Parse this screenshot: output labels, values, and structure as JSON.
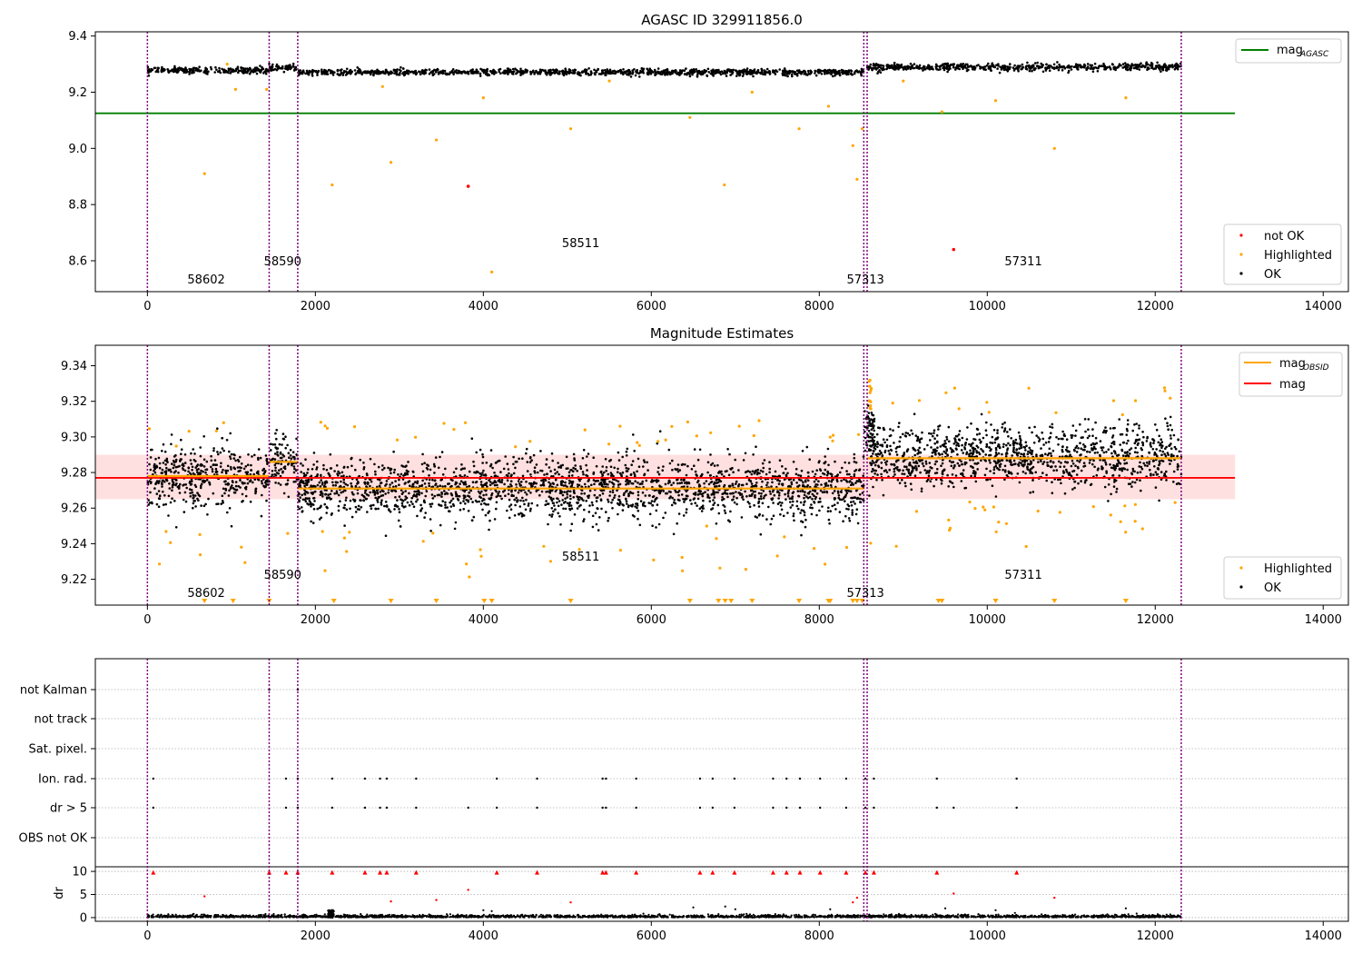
{
  "colors": {
    "ok": "#000000",
    "highlighted": "#ffa500",
    "not_ok": "#ff0000",
    "agasc_line": "#008000",
    "mag_line": "#ff0000",
    "obsid_line": "#ffa500",
    "band": "#ffd6d6",
    "obs_boundary": "#800080"
  },
  "obs_boundaries": [
    0,
    1450,
    1790,
    8530,
    8570,
    12310
  ],
  "obs_labels": [
    {
      "text": "58602",
      "x": 700,
      "row": 3
    },
    {
      "text": "58590",
      "x": 1610,
      "row": 2
    },
    {
      "text": "58511",
      "x": 5160,
      "row": 1
    },
    {
      "text": "57313",
      "x": 8550,
      "row": 3
    },
    {
      "text": "57311",
      "x": 10430,
      "row": 2
    }
  ],
  "chart_data": [
    {
      "type": "scatter",
      "title": "AGASC ID 329911856.0",
      "xlim": [
        -620,
        14300
      ],
      "ylim": [
        8.49,
        9.415
      ],
      "xticks": [
        0,
        2000,
        4000,
        6000,
        8000,
        10000,
        12000,
        14000
      ],
      "yticks": [
        8.6,
        8.8,
        9.0,
        9.2,
        9.4
      ],
      "yticklabels": [
        "8.6",
        "8.8",
        "9.0",
        "9.2",
        "9.4"
      ],
      "lines": [
        {
          "name": "mag",
          "subscript": "AGASC",
          "y": 9.125,
          "x": [
            -620,
            12950
          ]
        }
      ],
      "legend_points": [
        "not OK",
        "Highlighted",
        "OK"
      ],
      "ok_segments": [
        {
          "x": [
            0,
            1450
          ],
          "mean": 9.278,
          "spread": 0.01
        },
        {
          "x": [
            1450,
            1790
          ],
          "mean": 9.286,
          "spread": 0.01
        },
        {
          "x": [
            1790,
            8530
          ],
          "mean": 9.271,
          "spread": 0.01
        },
        {
          "x": [
            8570,
            12310
          ],
          "mean": 9.289,
          "spread": 0.012
        }
      ],
      "highlighted": [
        [
          680,
          8.91
        ],
        [
          1050,
          9.21
        ],
        [
          1420,
          9.21
        ],
        [
          2200,
          8.87
        ],
        [
          2900,
          8.95
        ],
        [
          3440,
          9.03
        ],
        [
          4000,
          9.18
        ],
        [
          4100,
          8.56
        ],
        [
          5040,
          9.07
        ],
        [
          6460,
          9.11
        ],
        [
          6870,
          8.87
        ],
        [
          7760,
          9.07
        ],
        [
          8110,
          9.15
        ],
        [
          8400,
          9.01
        ],
        [
          8450,
          8.89
        ],
        [
          8510,
          9.07
        ],
        [
          9460,
          9.13
        ],
        [
          10100,
          9.17
        ],
        [
          10800,
          9.0
        ],
        [
          11650,
          9.18
        ],
        [
          950,
          9.3
        ],
        [
          2800,
          9.22
        ],
        [
          5500,
          9.24
        ],
        [
          7200,
          9.2
        ],
        [
          9000,
          9.24
        ]
      ],
      "not_ok": [
        [
          3820,
          8.865
        ],
        [
          9600,
          8.64
        ]
      ]
    },
    {
      "type": "scatter",
      "title": "Magnitude Estimates",
      "xlim": [
        -620,
        14300
      ],
      "ylim": [
        9.2055,
        9.3515
      ],
      "xticks": [
        0,
        2000,
        4000,
        6000,
        8000,
        10000,
        12000,
        14000
      ],
      "yticks": [
        9.22,
        9.24,
        9.26,
        9.28,
        9.3,
        9.32,
        9.34
      ],
      "yticklabels": [
        "9.22",
        "9.24",
        "9.26",
        "9.28",
        "9.30",
        "9.32",
        "9.34"
      ],
      "band": {
        "y": [
          9.265,
          9.29
        ],
        "x": [
          -620,
          12950
        ]
      },
      "lines": [
        {
          "name": "mag",
          "subscript": "OBSID"
        },
        {
          "name": "mag",
          "y": 9.277,
          "x": [
            -620,
            12950
          ]
        }
      ],
      "obsid_segments": [
        {
          "x": [
            0,
            1450
          ],
          "y": 9.278
        },
        {
          "x": [
            1450,
            1790
          ],
          "y": 9.286
        },
        {
          "x": [
            1790,
            8530
          ],
          "y": 9.271
        },
        {
          "x": [
            8570,
            12310
          ],
          "y": 9.288
        }
      ],
      "legend_points": [
        "Highlighted",
        "OK"
      ],
      "highlighted_clipped_x": [
        680,
        1020,
        1450,
        2220,
        2900,
        3440,
        4010,
        4100,
        5040,
        6460,
        6800,
        6880,
        6950,
        7200,
        7760,
        8110,
        8130,
        8400,
        8450,
        8510,
        9420,
        9460,
        10100,
        10800,
        11650
      ]
    },
    {
      "type": "scatter",
      "title": "",
      "xlim": [
        -620,
        14300
      ],
      "xticks": [
        0,
        2000,
        4000,
        6000,
        8000,
        10000,
        12000,
        14000
      ],
      "flag_rows": [
        "not Kalman",
        "not track",
        "Sat. pixel.",
        "Ion. rad.",
        "dr > 5",
        "OBS not OK"
      ],
      "flag_events": {
        "not Kalman": [
          1450,
          1790
        ],
        "not track": [],
        "Sat. pixel.": [],
        "Ion. rad.": [
          70,
          1650,
          1790,
          2200,
          2590,
          2770,
          2850,
          3200,
          4160,
          4640,
          5420,
          5460,
          5820,
          6580,
          6730,
          6990,
          7450,
          7610,
          7770,
          8010,
          8320,
          8550,
          8650,
          9400,
          10350
        ],
        "dr > 5": [
          70,
          1650,
          1790,
          2200,
          2590,
          2770,
          2850,
          3200,
          3820,
          4160,
          4640,
          5420,
          5460,
          5820,
          6580,
          6730,
          6990,
          7450,
          7610,
          7770,
          8010,
          8320,
          8550,
          8650,
          9400,
          9600,
          10350
        ],
        "OBS not OK": []
      },
      "dr_ylim": [
        -0.8,
        11
      ],
      "dr_yticks": [
        0,
        5,
        10
      ],
      "dr_yticklabels": [
        "0",
        "5",
        "10"
      ],
      "ylabel": "dr",
      "dr_high": [
        [
          70,
          9.8
        ],
        [
          1450,
          9.8
        ],
        [
          1650,
          9.8
        ],
        [
          1790,
          9.8
        ],
        [
          2200,
          9.8
        ],
        [
          2590,
          9.8
        ],
        [
          2770,
          9.8
        ],
        [
          2850,
          9.8
        ],
        [
          3200,
          9.8
        ],
        [
          4160,
          9.8
        ],
        [
          4640,
          9.8
        ],
        [
          5420,
          9.8
        ],
        [
          5460,
          9.8
        ],
        [
          5820,
          9.8
        ],
        [
          6580,
          9.8
        ],
        [
          6730,
          9.8
        ],
        [
          6990,
          9.8
        ],
        [
          7450,
          9.8
        ],
        [
          7610,
          9.8
        ],
        [
          7770,
          9.8
        ],
        [
          8010,
          9.8
        ],
        [
          8320,
          9.8
        ],
        [
          8550,
          9.8
        ],
        [
          8650,
          9.8
        ],
        [
          9400,
          9.8
        ],
        [
          10350,
          9.8
        ]
      ],
      "dr_mid": [
        [
          680,
          4.6
        ],
        [
          2900,
          3.5
        ],
        [
          3440,
          3.8
        ],
        [
          3820,
          6.0
        ],
        [
          5040,
          3.3
        ],
        [
          8400,
          3.3
        ],
        [
          8450,
          4.3
        ],
        [
          9600,
          5.2
        ],
        [
          10800,
          4.3
        ]
      ],
      "dr_small": [
        [
          4000,
          1.6
        ],
        [
          4100,
          1.4
        ],
        [
          6500,
          2.2
        ],
        [
          6880,
          2.4
        ],
        [
          7000,
          1.8
        ],
        [
          8130,
          1.8
        ],
        [
          9500,
          2.0
        ],
        [
          10100,
          1.6
        ],
        [
          11650,
          2.0
        ],
        [
          2190,
          1.2
        ],
        [
          2210,
          1.6
        ]
      ]
    }
  ]
}
